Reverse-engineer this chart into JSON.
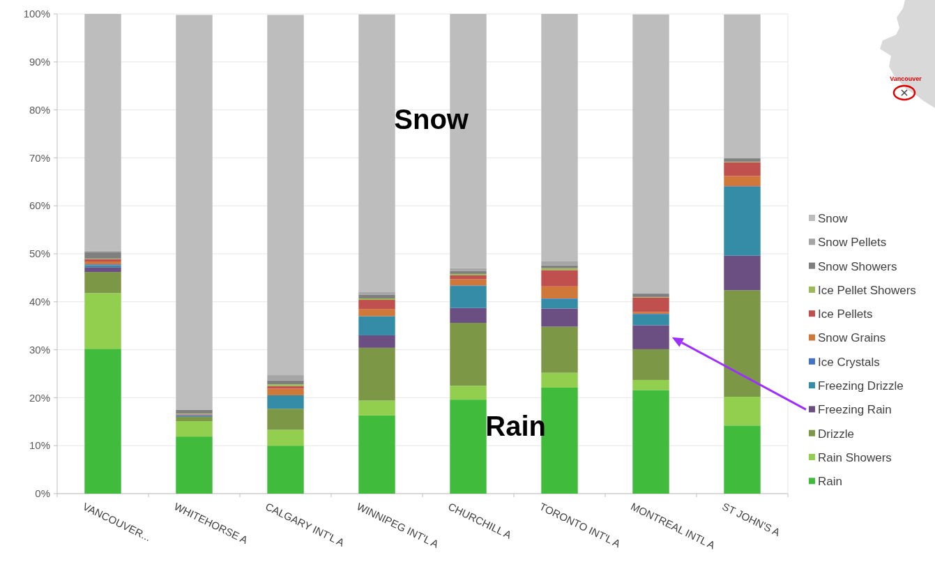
{
  "chart_data": {
    "type": "bar",
    "stacked": true,
    "categories": [
      "VANCOUVER...",
      "WHITEHORSE A",
      "CALGARY INT'L A",
      "WINNIPEG INT'L A",
      "CHURCHILL A",
      "TORONTO INT'L A",
      "MONTREAL INTL A",
      "ST JOHN'S A"
    ],
    "series": [
      {
        "name": "Rain",
        "color": "#41bb3b",
        "values": [
          30.2,
          11.9,
          10.0,
          16.3,
          19.6,
          22.1,
          21.6,
          14.2
        ]
      },
      {
        "name": "Rain Showers",
        "color": "#92cf4f",
        "values": [
          11.6,
          3.2,
          3.3,
          3.1,
          2.9,
          3.1,
          2.1,
          6.0
        ]
      },
      {
        "name": "Drizzle",
        "color": "#7c9746",
        "values": [
          4.4,
          0.9,
          4.4,
          11.0,
          13.1,
          9.6,
          6.4,
          22.2
        ]
      },
      {
        "name": "Freezing Rain",
        "color": "#6b4f82",
        "values": [
          1.0,
          0.1,
          null,
          2.6,
          3.1,
          3.8,
          5.0,
          7.2
        ]
      },
      {
        "name": "Freezing Drizzle",
        "color": "#358ca6",
        "values": [
          0.4,
          0.2,
          2.8,
          4.0,
          4.6,
          2.0,
          2.3,
          14.4
        ]
      },
      {
        "name": "Ice Crystals",
        "color": "#4472c4",
        "values": [
          0.2,
          0.1,
          null,
          null,
          0.1,
          0.1,
          0.1,
          0.1
        ]
      },
      {
        "name": "Snow Grains",
        "color": "#d0773a",
        "values": [
          0.6,
          0.1,
          1.4,
          1.5,
          1.3,
          2.5,
          0.4,
          2.1
        ]
      },
      {
        "name": "Ice Pellets",
        "color": "#c0504d",
        "values": [
          0.5,
          0.1,
          0.5,
          1.9,
          0.8,
          3.4,
          3.0,
          2.9
        ]
      },
      {
        "name": "Ice Pellet Showers",
        "color": "#9bbb59",
        "values": [
          0.1,
          0.1,
          0.4,
          0.3,
          0.3,
          0.4,
          0.1,
          0.1
        ]
      },
      {
        "name": "Snow Showers",
        "color": "#7f7f7f",
        "values": [
          1.3,
          0.8,
          0.8,
          0.8,
          0.6,
          0.6,
          0.7,
          0.7
        ]
      },
      {
        "name": "Snow Pellets",
        "color": "#a5a5a5",
        "values": [
          0.3,
          null,
          1.1,
          0.5,
          0.6,
          0.9,
          null,
          null
        ]
      },
      {
        "name": "Snow",
        "color": "#bdbdbd",
        "values": [
          49.4,
          82.3,
          75.1,
          57.9,
          53.0,
          51.5,
          58.2,
          30.0
        ]
      }
    ],
    "ylim": [
      0,
      100
    ],
    "yticks": [
      {
        "value": 0,
        "label": "0%"
      },
      {
        "value": 10,
        "label": "10%"
      },
      {
        "value": 20,
        "label": "20%"
      },
      {
        "value": 30,
        "label": "30%"
      },
      {
        "value": 40,
        "label": "40%"
      },
      {
        "value": 50,
        "label": "50%"
      },
      {
        "value": 60,
        "label": "60%"
      },
      {
        "value": 70,
        "label": "70%"
      },
      {
        "value": 80,
        "label": "80%"
      },
      {
        "value": 90,
        "label": "90%"
      },
      {
        "value": 100,
        "label": "100%"
      }
    ],
    "grid": "y",
    "legend": "right",
    "annotations": [
      "Snow",
      "Rain",
      "Vancouver"
    ]
  }
}
